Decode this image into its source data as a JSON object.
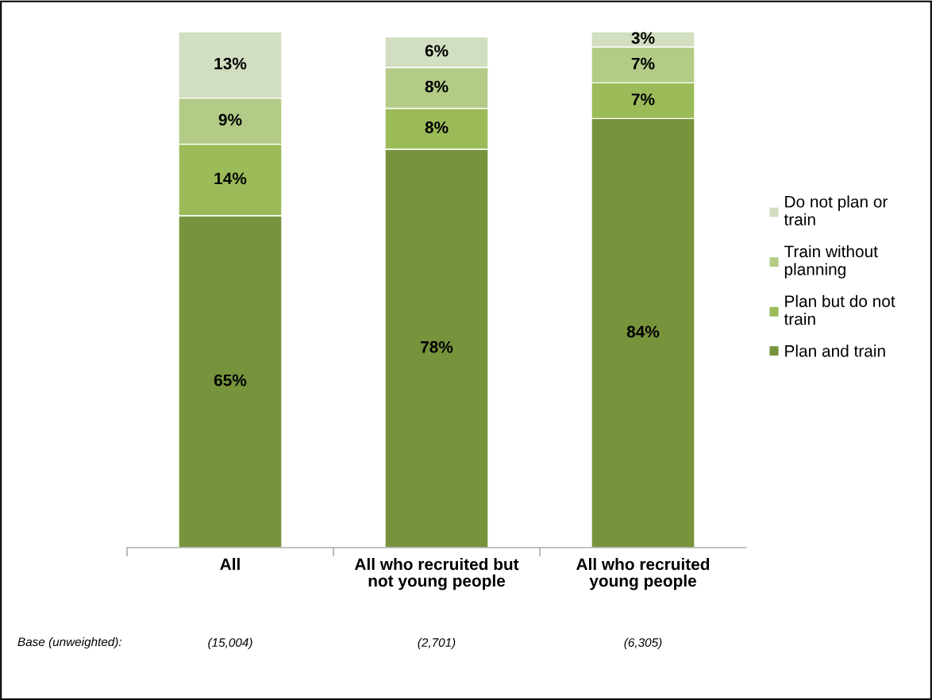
{
  "chart_data": {
    "type": "bar",
    "stacked": true,
    "legend": "right",
    "grid": false,
    "categories": [
      "All",
      "All who recruited but not young people",
      "All who recruited young people"
    ],
    "series": [
      {
        "name": "Plan and train",
        "color": "#77933c",
        "values": [
          65,
          78,
          84
        ],
        "value_labels": [
          "65%",
          "78%",
          "84%"
        ]
      },
      {
        "name": "Plan but do not train",
        "color": "#9bbb59",
        "values": [
          14,
          8,
          7
        ],
        "value_labels": [
          "14%",
          "8%",
          "7%"
        ]
      },
      {
        "name": "Train without planning",
        "color": "#b3cb86",
        "values": [
          9,
          8,
          7
        ],
        "value_labels": [
          "9%",
          "8%",
          "7%"
        ]
      },
      {
        "name": "Do not plan or train",
        "color": "#d2dec0",
        "values": [
          13,
          6,
          3
        ],
        "value_labels": [
          "13%",
          "6%",
          "3%"
        ]
      }
    ],
    "annotations": [
      "Base (unweighted):",
      "(15,004)",
      "(2,701)",
      "(6,305)"
    ]
  }
}
